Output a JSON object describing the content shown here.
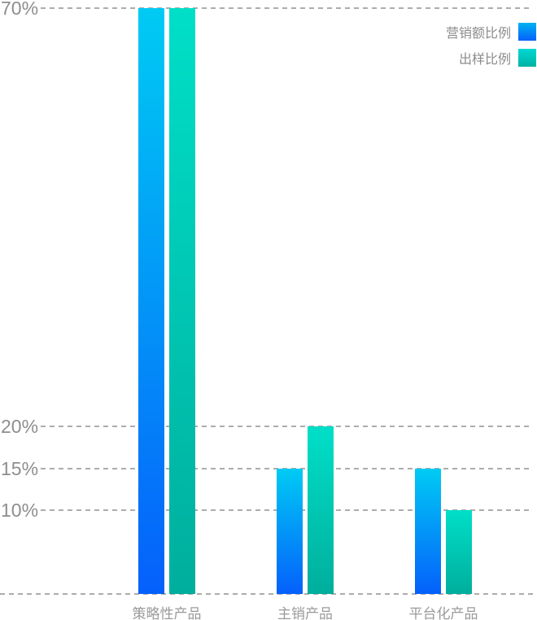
{
  "chart_data": {
    "type": "bar",
    "title": "",
    "categories": [
      "策略性产品",
      "主销产品",
      "平台化产品"
    ],
    "series": [
      {
        "name": "营销额比例",
        "values": [
          70,
          15,
          15
        ],
        "gradient_top": "#00CBF4",
        "gradient_bottom": "#0560FB"
      },
      {
        "name": "出样比例",
        "values": [
          70,
          20,
          10
        ],
        "gradient_top": "#00DFC8",
        "gradient_bottom": "#00AE9D"
      }
    ],
    "ylim": [
      0,
      70
    ],
    "yticks": [
      70,
      20,
      15,
      10
    ],
    "y_tick_labels": [
      "70%",
      "20%",
      "15%",
      "10%"
    ],
    "grid": "horizontal-dashed",
    "legend_position": "top-right",
    "xlabel": "",
    "ylabel": ""
  },
  "legend": {
    "items": [
      {
        "label": "营销额比例"
      },
      {
        "label": "出样比例"
      }
    ]
  },
  "colors": {
    "background": "#ffffff",
    "gridline": "#ACACAC",
    "axis_label_text": "#8E8E8E",
    "category_label_text": "#9A9A9A",
    "legend_text": "#8C8C8C"
  }
}
